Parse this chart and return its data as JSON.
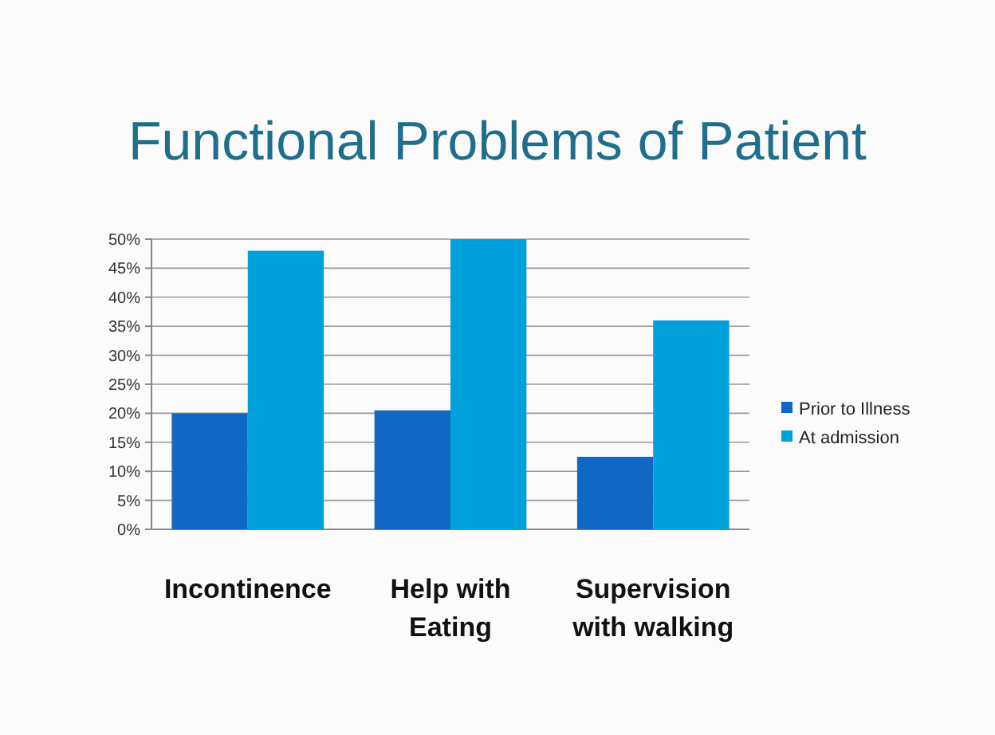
{
  "chart_data": {
    "type": "bar",
    "title": "Functional Problems of Patient",
    "categories": [
      "Incontinence",
      "Help with Eating",
      "Supervision with walking"
    ],
    "series": [
      {
        "name": "Prior to Illness",
        "color": "#1068c4",
        "values": [
          20,
          20.5,
          12.5
        ]
      },
      {
        "name": "At admission",
        "color": "#00a0dc",
        "values": [
          48,
          50,
          36
        ]
      }
    ],
    "ylim": [
      0,
      50
    ],
    "yticks": [
      {
        "value": 0,
        "label": "0%"
      },
      {
        "value": 5,
        "label": "5%"
      },
      {
        "value": 10,
        "label": "10%"
      },
      {
        "value": 15,
        "label": "15%"
      },
      {
        "value": 20,
        "label": "20%"
      },
      {
        "value": 25,
        "label": "25%"
      },
      {
        "value": 30,
        "label": "30%"
      },
      {
        "value": 35,
        "label": "35%"
      },
      {
        "value": 40,
        "label": "40%"
      },
      {
        "value": 45,
        "label": "45%"
      },
      {
        "value": 50,
        "label": "50%"
      }
    ],
    "grid": true,
    "legend": "right"
  }
}
